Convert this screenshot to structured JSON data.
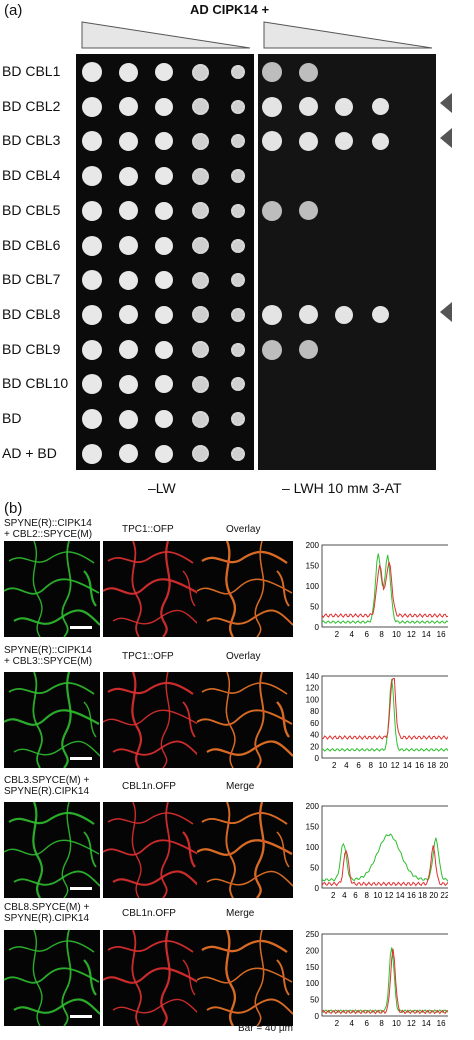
{
  "panel_a": {
    "label": "(a)",
    "header": "AD CIPK14 +",
    "rows": [
      "BD CBL1",
      "BD CBL2",
      "BD CBL3",
      "BD CBL4",
      "BD CBL5",
      "BD CBL6",
      "BD CBL7",
      "BD CBL8",
      "BD CBL9",
      "BD CBL10",
      "BD",
      "AD  + BD"
    ],
    "col_left": "–LW",
    "col_right": "– LWH 10 mм 3-AT",
    "growth_right": [
      2,
      4,
      4,
      0,
      2,
      0,
      0,
      4,
      2,
      0,
      0,
      0
    ]
  },
  "panel_b": {
    "label": "(b)",
    "rows": [
      {
        "title_1": "SPYNE(R)::CIPK14",
        "title_2": "+ CBL2::SPYCE(M)",
        "mid": "TPC1::OFP",
        "right": "Overlay",
        "plot": {
          "yticks": [
            "200",
            "150",
            "100",
            "50",
            "0"
          ],
          "xticks": [
            "2",
            "4",
            "6",
            "8",
            "10",
            "12",
            "14",
            "16"
          ],
          "unit": "µm"
        }
      },
      {
        "title_1": "SPYNE(R)::CIPK14",
        "title_2": "+ CBL3::SPYCE(M)",
        "mid": "TPC1::OFP",
        "right": "Overlay",
        "plot": {
          "yticks": [
            "140",
            "120",
            "100",
            "80",
            "60",
            "40",
            "20",
            "0"
          ],
          "xticks": [
            "2",
            "4",
            "6",
            "8",
            "10",
            "12",
            "14",
            "16",
            "18",
            "20"
          ],
          "unit": "µm"
        }
      },
      {
        "title_1": "CBL3.SPYCE(M) +",
        "title_2": "SPYNE(R).CIPK14",
        "mid": "CBL1n.OFP",
        "right": "Merge",
        "plot": {
          "yticks": [
            "200",
            "150",
            "100",
            "50",
            "0"
          ],
          "xticks": [
            "2",
            "4",
            "6",
            "8",
            "10",
            "12",
            "14",
            "16",
            "18",
            "20",
            "22"
          ],
          "unit": "µm"
        }
      },
      {
        "title_1": "CBL8.SPYCE(M) +",
        "title_2": "SPYNE(R).CIPK14",
        "mid": "CBL1n.OFP",
        "right": "Merge",
        "plot": {
          "yticks": [
            "250",
            "200",
            "150",
            "100",
            "50",
            "0"
          ],
          "xticks": [
            "2",
            "4",
            "6",
            "8",
            "10",
            "12",
            "14",
            "16"
          ],
          "unit": "µm"
        }
      }
    ],
    "bar_label": "Bar = 40 µm"
  },
  "colors": {
    "green": "#2fbf2f",
    "red": "#e03030",
    "plate": "#0b0b0b"
  }
}
